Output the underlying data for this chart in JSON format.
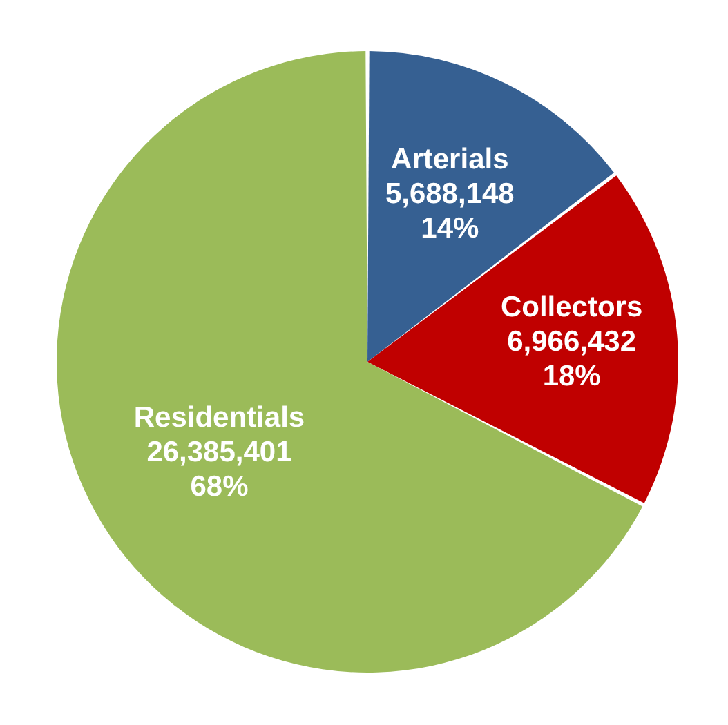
{
  "chart_data": {
    "type": "pie",
    "categories": [
      "Arterials",
      "Collectors",
      "Residentials"
    ],
    "values": [
      5688148,
      6966432,
      26385401
    ],
    "colors": [
      "#366092",
      "#c00000",
      "#9bbb59"
    ],
    "value_labels": [
      "5,688,148\n14%",
      "6,966,432\n18%",
      "26,385,401\n68%"
    ],
    "legend": false
  }
}
